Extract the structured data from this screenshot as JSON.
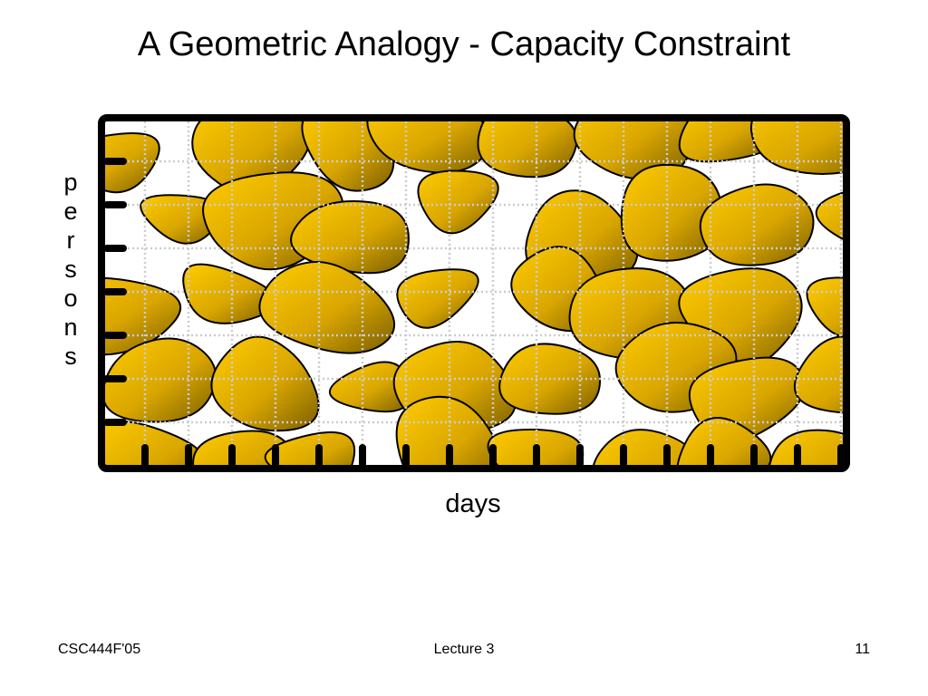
{
  "title": "A Geometric Analogy - Capacity Constraint",
  "diagram": {
    "y_label": "persons",
    "x_label": "days"
  },
  "footer": {
    "left": "CSC444F'05",
    "center": "Lecture 3",
    "right": "11"
  }
}
